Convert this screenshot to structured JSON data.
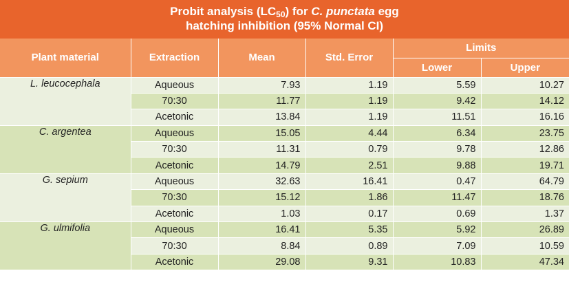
{
  "title": {
    "line1_pre": "Probit analysis (LC",
    "line1_sub": "50",
    "line1_mid": ") for ",
    "line1_species": "C. punctata",
    "line1_post": " egg",
    "line2": "hatching inhibition (95% Normal CI)"
  },
  "headers": {
    "plant": "Plant material",
    "extraction": "Extraction",
    "mean": "Mean",
    "std_error": "Std. Error",
    "limits": "Limits",
    "lower": "Lower",
    "upper": "Upper"
  },
  "groups": [
    {
      "plant": "L. leucocephala",
      "rows": [
        {
          "extraction": "Aqueous",
          "mean": "7.93",
          "std_error": "1.19",
          "lower": "5.59",
          "upper": "10.27"
        },
        {
          "extraction": "70:30",
          "mean": "11.77",
          "std_error": "1.19",
          "lower": "9.42",
          "upper": "14.12"
        },
        {
          "extraction": "Acetonic",
          "mean": "13.84",
          "std_error": "1.19",
          "lower": "11.51",
          "upper": "16.16"
        }
      ]
    },
    {
      "plant": "C. argentea",
      "rows": [
        {
          "extraction": "Aqueous",
          "mean": "15.05",
          "std_error": "4.44",
          "lower": "6.34",
          "upper": "23.75"
        },
        {
          "extraction": "70:30",
          "mean": "11.31",
          "std_error": "0.79",
          "lower": "9.78",
          "upper": "12.86"
        },
        {
          "extraction": "Acetonic",
          "mean": "14.79",
          "std_error": "2.51",
          "lower": "9.88",
          "upper": "19.71"
        }
      ]
    },
    {
      "plant": "G. sepium",
      "rows": [
        {
          "extraction": "Aqueous",
          "mean": "32.63",
          "std_error": "16.41",
          "lower": "0.47",
          "upper": "64.79"
        },
        {
          "extraction": "70:30",
          "mean": "15.12",
          "std_error": "1.86",
          "lower": "11.47",
          "upper": "18.76"
        },
        {
          "extraction": "Acetonic",
          "mean": "1.03",
          "std_error": "0.17",
          "lower": "0.69",
          "upper": "1.37"
        }
      ]
    },
    {
      "plant": "G. ulmifolia",
      "rows": [
        {
          "extraction": "Aqueous",
          "mean": "16.41",
          "std_error": "5.35",
          "lower": "5.92",
          "upper": "26.89"
        },
        {
          "extraction": "70:30",
          "mean": "8.84",
          "std_error": "0.89",
          "lower": "7.09",
          "upper": "10.59"
        },
        {
          "extraction": "Acetonic",
          "mean": "29.08",
          "std_error": "9.31",
          "lower": "10.83",
          "upper": "47.34"
        }
      ]
    }
  ],
  "colors": {
    "title_bg": "#e8642c",
    "header_bg": "#f2955e",
    "row_light": "#ebf0df",
    "row_dark": "#d7e3b7"
  }
}
